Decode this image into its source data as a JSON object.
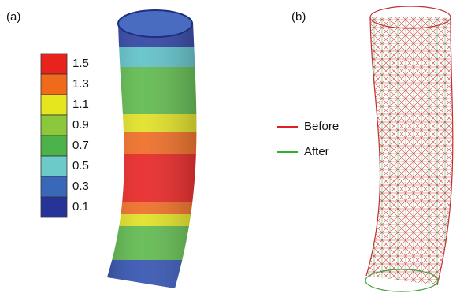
{
  "panels": [
    {
      "label": "(a)"
    },
    {
      "label": "(b)"
    }
  ],
  "colorbar": [
    {
      "label": "1.5",
      "color": "#e8231e"
    },
    {
      "label": "1.3",
      "color": "#f06a1c"
    },
    {
      "label": "1.1",
      "color": "#e6e61e"
    },
    {
      "label": "0.9",
      "color": "#8cc83c"
    },
    {
      "label": "0.7",
      "color": "#4cb24a"
    },
    {
      "label": "0.5",
      "color": "#6ccac8"
    },
    {
      "label": "0.3",
      "color": "#3a68b8"
    },
    {
      "label": "0.1",
      "color": "#26349a"
    }
  ],
  "legend": [
    {
      "label": "Before",
      "color": "#e02020"
    },
    {
      "label": "After",
      "color": "#30b030"
    }
  ]
}
